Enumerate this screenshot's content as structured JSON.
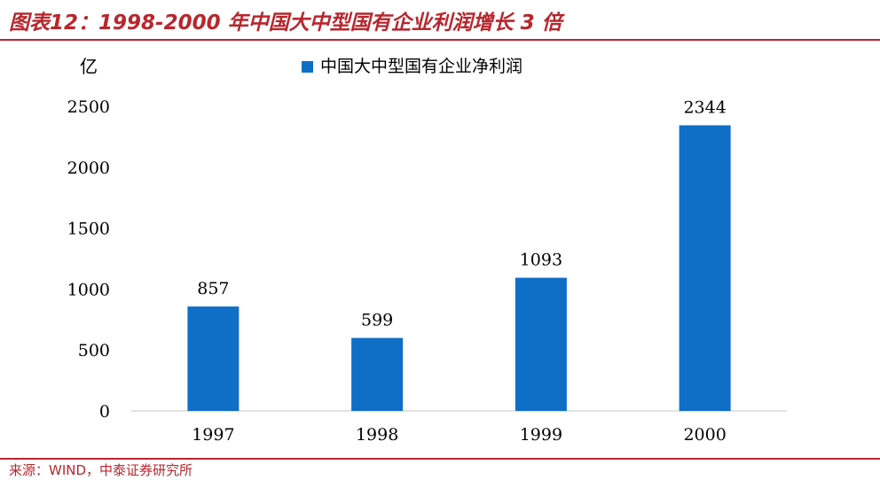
{
  "header": {
    "title": "图表12：1998-2000 年中国大中型国有企业利润增长 3 倍"
  },
  "footer": {
    "source": "来源：WIND，中泰证券研究所"
  },
  "colors": {
    "accent": "#b8262d",
    "bar": "#0f6fc6",
    "axis": "#d9d9d9",
    "text": "#000000"
  },
  "chart_data": {
    "type": "bar",
    "categories": [
      "1997",
      "1998",
      "1999",
      "2000"
    ],
    "series": [
      {
        "name": "中国大中型国有企业净利润",
        "values": [
          857,
          599,
          1093,
          2344
        ]
      }
    ],
    "data_labels": [
      "857",
      "599",
      "1093",
      "2344"
    ],
    "unit_label": "亿",
    "yticks": [
      0,
      500,
      1000,
      1500,
      2000,
      2500
    ],
    "ylim": [
      0,
      2500
    ],
    "grid": false,
    "legend_position": "top"
  }
}
